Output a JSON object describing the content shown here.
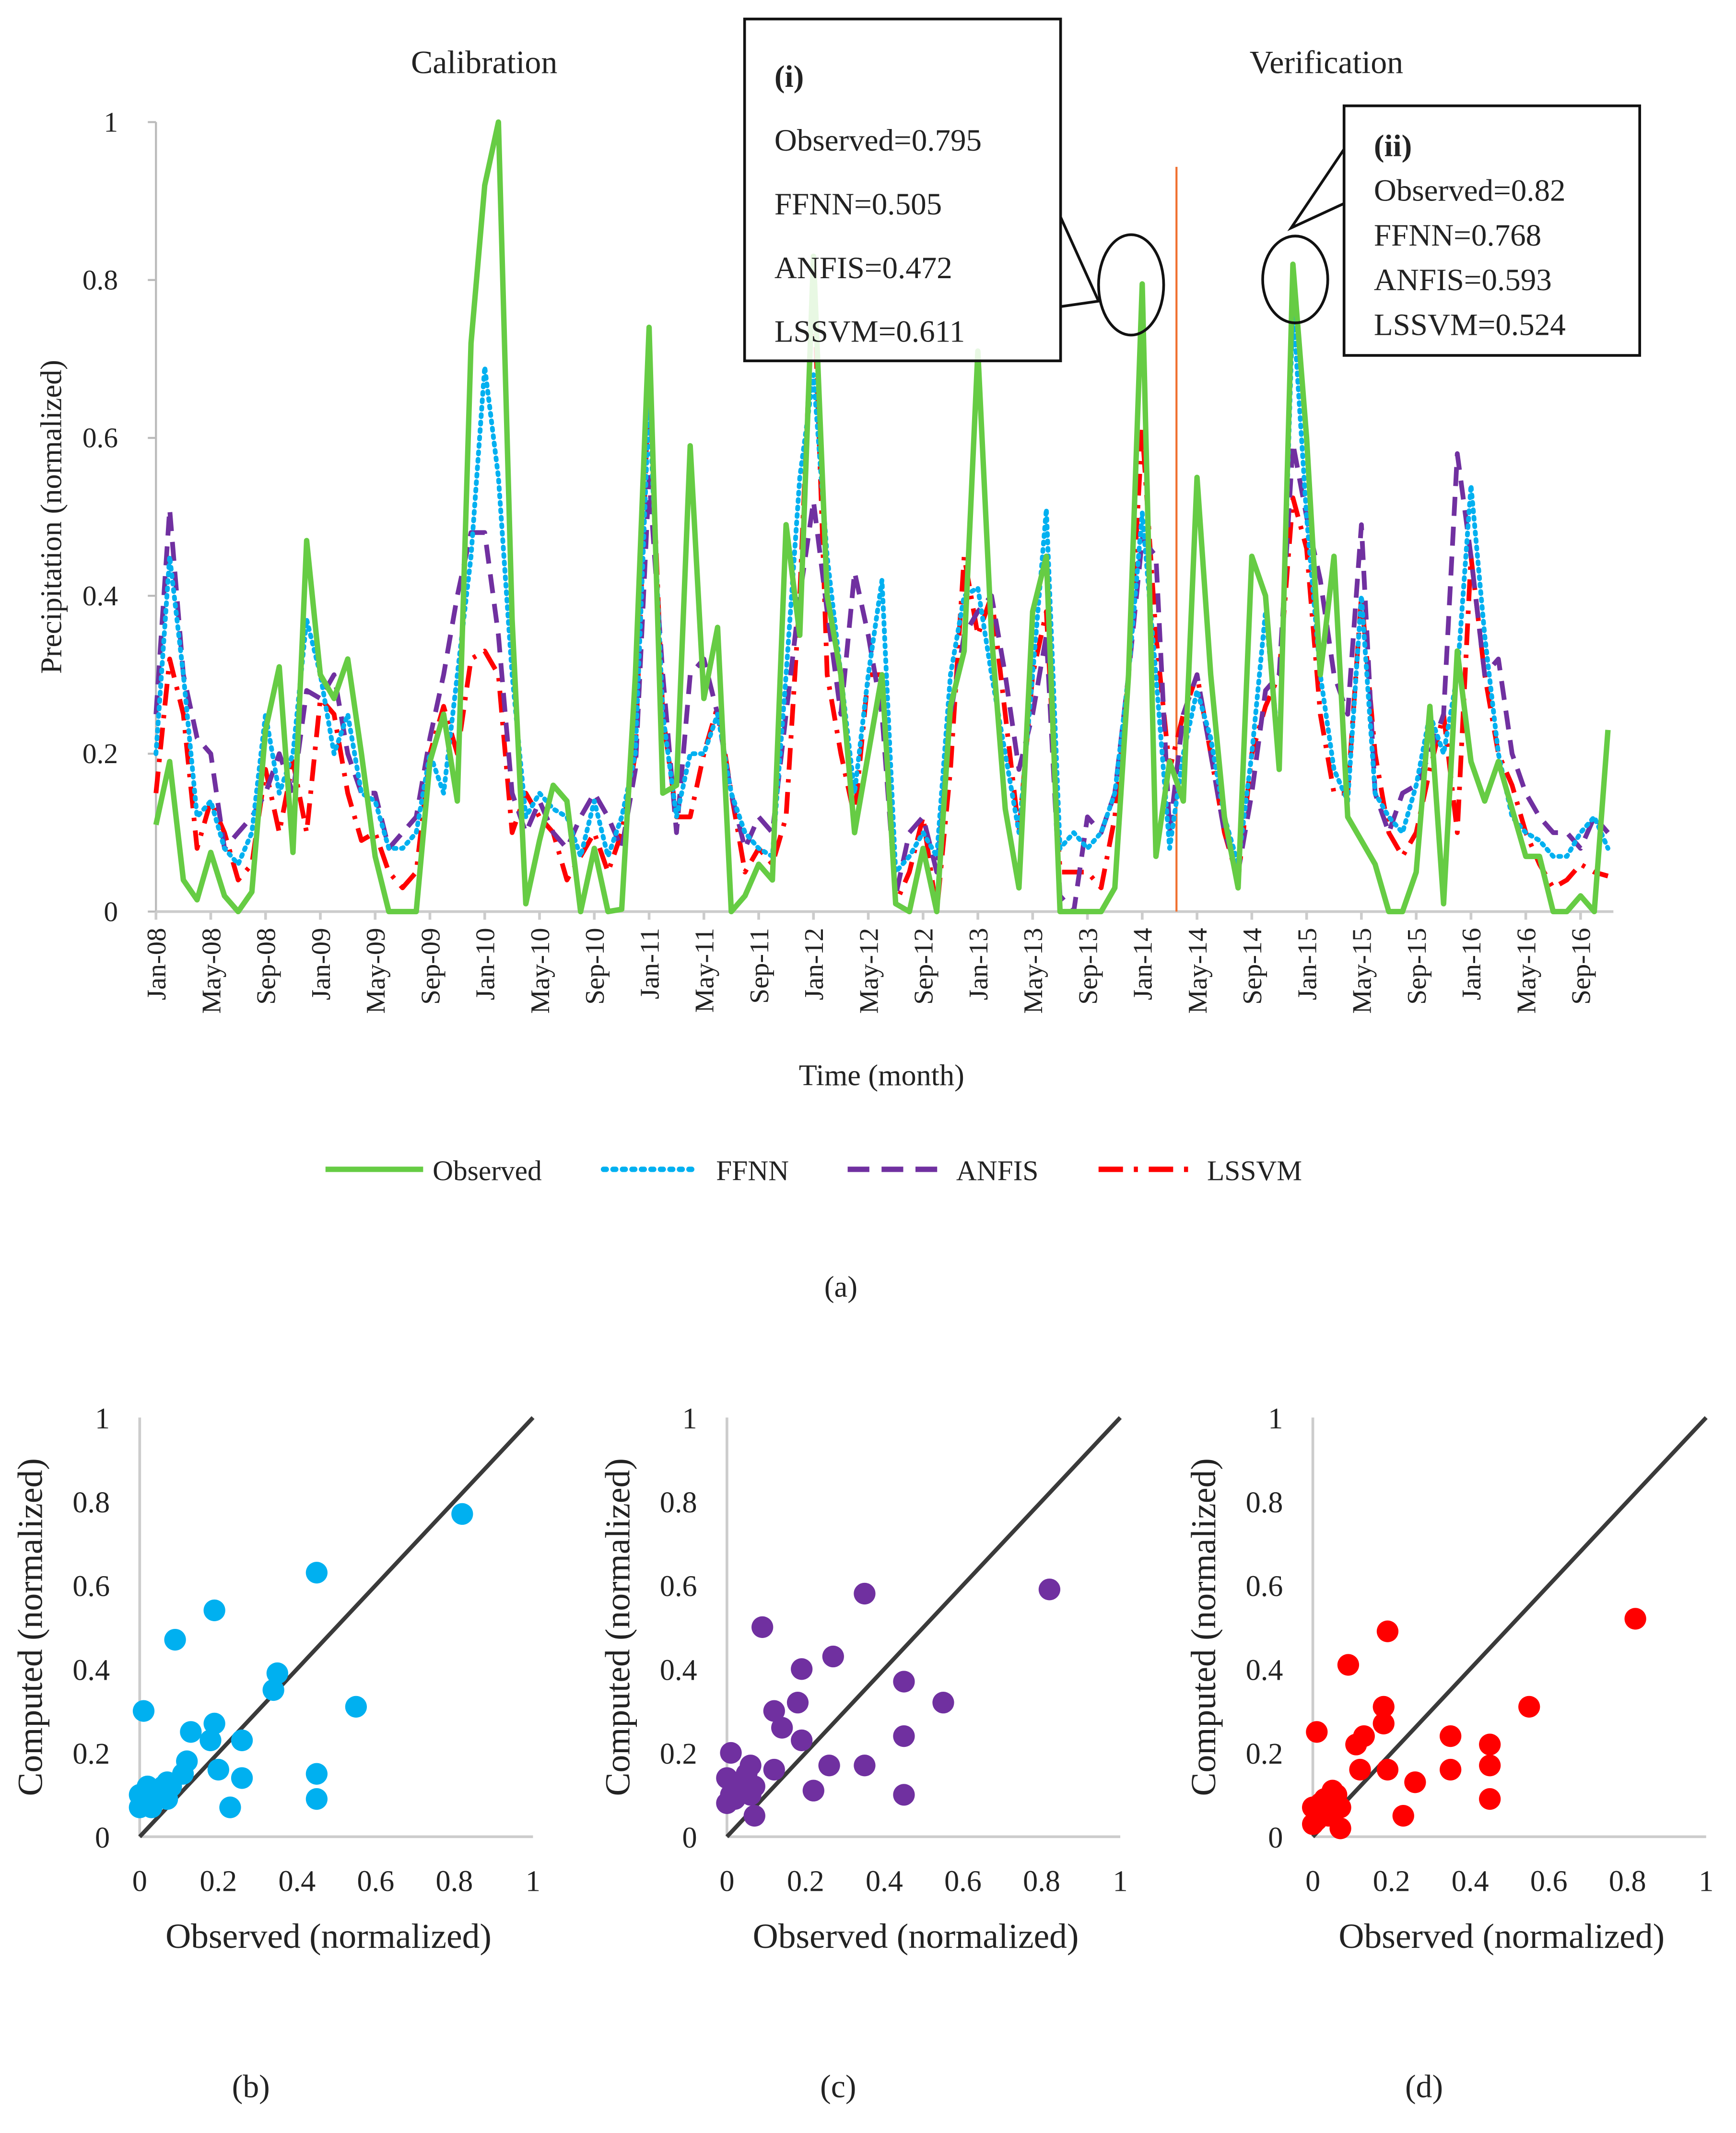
{
  "chart_data": [
    {
      "type": "line",
      "panel_label": "(a)",
      "title_left": "Calibration",
      "title_right": "Verification",
      "xlabel": "Time (month)",
      "ylabel": "Precipitation (normalized)",
      "ylim": [
        0,
        1
      ],
      "yticks": [
        "0",
        "0.2",
        "0.4",
        "0.6",
        "0.8",
        "1"
      ],
      "ytick_values": [
        0,
        0.2,
        0.4,
        0.6,
        0.8,
        1
      ],
      "start_month": "Jan-08",
      "xtick_labels": [
        "Jan-08",
        "May-08",
        "Sep-08",
        "Jan-09",
        "May-09",
        "Sep-09",
        "Jan-10",
        "May-10",
        "Sep-10",
        "Jan-11",
        "May-11",
        "Sep-11",
        "Jan-12",
        "May-12",
        "Sep-12",
        "Jan-13",
        "May-13",
        "Sep-13",
        "Jan-14",
        "May-14",
        "Sep-14",
        "Jan-15",
        "May-15",
        "Sep-15",
        "Jan-16",
        "May-16",
        "Sep-16"
      ],
      "xtick_every_months": 4,
      "split_month_index": 74.5,
      "colors": {
        "Observed": "#66cc44",
        "FFNN": "#00b0f0",
        "ANFIS": "#7030a0",
        "LSSVM": "#ff0000",
        "split": "#f07030"
      },
      "legend": [
        "Observed",
        "FFNN",
        "ANFIS",
        "LSSVM"
      ],
      "legend_position": "bottom",
      "series": [
        {
          "name": "Observed",
          "values": [
            0.11,
            0.19,
            0.04,
            0.015,
            0.075,
            0.02,
            0,
            0.025,
            0.23,
            0.31,
            0.075,
            0.47,
            0.3,
            0.27,
            0.32,
            0.2,
            0.07,
            0,
            0,
            0,
            0.19,
            0.25,
            0.14,
            0.72,
            0.92,
            1.0,
            0.37,
            0.01,
            0.09,
            0.16,
            0.14,
            0,
            0.08,
            0,
            0.003,
            0.3,
            0.74,
            0.15,
            0.16,
            0.59,
            0.27,
            0.36,
            0,
            0.02,
            0.06,
            0.04,
            0.49,
            0.35,
            0.83,
            0.4,
            0.3,
            0.1,
            0.2,
            0.3,
            0.01,
            0,
            0.08,
            0,
            0.26,
            0.33,
            0.71,
            0.35,
            0.13,
            0.03,
            0.38,
            0.45,
            0,
            0,
            0,
            0,
            0.03,
            0.3,
            0.795,
            0.07,
            0.19,
            0.14,
            0.55,
            0.3,
            0.12,
            0.03,
            0.45,
            0.4,
            0.18,
            0.82,
            0.6,
            0.3,
            0.45,
            0.12,
            0.09,
            0.06,
            0,
            0,
            0.05,
            0.26,
            0.01,
            0.33,
            0.19,
            0.14,
            0.19,
            0.13,
            0.07,
            0.07,
            0,
            0,
            0.02,
            0,
            0.23
          ]
        },
        {
          "name": "FFNN",
          "values": [
            0.2,
            0.45,
            0.3,
            0.12,
            0.14,
            0.08,
            0.06,
            0.1,
            0.25,
            0.15,
            0.2,
            0.37,
            0.3,
            0.2,
            0.25,
            0.15,
            0.14,
            0.08,
            0.08,
            0.1,
            0.2,
            0.15,
            0.3,
            0.45,
            0.69,
            0.55,
            0.3,
            0.12,
            0.15,
            0.13,
            0.12,
            0.07,
            0.14,
            0.07,
            0.12,
            0.2,
            0.65,
            0.25,
            0.12,
            0.2,
            0.2,
            0.25,
            0.15,
            0.1,
            0.08,
            0.07,
            0.3,
            0.55,
            0.68,
            0.45,
            0.3,
            0.15,
            0.3,
            0.42,
            0.05,
            0.07,
            0.1,
            0.07,
            0.3,
            0.4,
            0.41,
            0.3,
            0.2,
            0.1,
            0.3,
            0.51,
            0.08,
            0.1,
            0.08,
            0.1,
            0.15,
            0.3,
            0.505,
            0.3,
            0.08,
            0.2,
            0.28,
            0.22,
            0.12,
            0.06,
            0.2,
            0.38,
            0.2,
            0.768,
            0.5,
            0.3,
            0.18,
            0.14,
            0.4,
            0.15,
            0.12,
            0.1,
            0.16,
            0.25,
            0.2,
            0.3,
            0.54,
            0.35,
            0.2,
            0.12,
            0.1,
            0.09,
            0.07,
            0.07,
            0.1,
            0.12,
            0.08
          ]
        },
        {
          "name": "ANFIS",
          "values": [
            0.25,
            0.51,
            0.3,
            0.22,
            0.2,
            0.08,
            0.1,
            0.12,
            0.15,
            0.2,
            0.15,
            0.28,
            0.27,
            0.3,
            0.2,
            0.15,
            0.15,
            0.08,
            0.1,
            0.12,
            0.22,
            0.3,
            0.4,
            0.48,
            0.48,
            0.35,
            0.15,
            0.1,
            0.14,
            0.1,
            0.08,
            0.12,
            0.15,
            0.12,
            0.08,
            0.18,
            0.55,
            0.3,
            0.1,
            0.3,
            0.32,
            0.25,
            0.15,
            0.08,
            0.12,
            0.1,
            0.25,
            0.4,
            0.52,
            0.38,
            0.25,
            0.43,
            0.35,
            0.25,
            0.02,
            0.1,
            0.12,
            0.05,
            0.25,
            0.35,
            0.38,
            0.4,
            0.3,
            0.18,
            0.25,
            0.35,
            0.02,
            0,
            0.12,
            0.1,
            0.15,
            0.3,
            0.472,
            0.45,
            0.1,
            0.25,
            0.3,
            0.2,
            0.1,
            0.05,
            0.15,
            0.28,
            0.3,
            0.593,
            0.5,
            0.42,
            0.3,
            0.25,
            0.49,
            0.15,
            0.1,
            0.15,
            0.16,
            0.2,
            0.25,
            0.58,
            0.45,
            0.3,
            0.32,
            0.2,
            0.15,
            0.12,
            0.1,
            0.1,
            0.08,
            0.12,
            0.1
          ]
        },
        {
          "name": "LSSVM",
          "values": [
            0.15,
            0.32,
            0.25,
            0.08,
            0.14,
            0.1,
            0.04,
            0.06,
            0.18,
            0.1,
            0.19,
            0.1,
            0.27,
            0.25,
            0.15,
            0.09,
            0.1,
            0.05,
            0.03,
            0.05,
            0.2,
            0.26,
            0.2,
            0.32,
            0.33,
            0.3,
            0.1,
            0.15,
            0.12,
            0.1,
            0.04,
            0.07,
            0.1,
            0.05,
            0.1,
            0.2,
            0.68,
            0.25,
            0.12,
            0.12,
            0.2,
            0.26,
            0.15,
            0.05,
            0.08,
            0.06,
            0.12,
            0.4,
            0.81,
            0.3,
            0.2,
            0.12,
            0.3,
            0.3,
            0.01,
            0.05,
            0.12,
            0,
            0.18,
            0.45,
            0.35,
            0.4,
            0.25,
            0.1,
            0.3,
            0.38,
            0.05,
            0.05,
            0.05,
            0.03,
            0.12,
            0.3,
            0.611,
            0.35,
            0.18,
            0.25,
            0.3,
            0.2,
            0.1,
            0.04,
            0.2,
            0.26,
            0.3,
            0.524,
            0.46,
            0.25,
            0.15,
            0.15,
            0.4,
            0.2,
            0.1,
            0.07,
            0.1,
            0.18,
            0.25,
            0.1,
            0.45,
            0.3,
            0.2,
            0.16,
            0.1,
            0.06,
            0.03,
            0.04,
            0.06,
            0.05,
            0.045
          ]
        }
      ],
      "annotations": [
        {
          "label": "(i)",
          "lines": [
            "Observed=0.795",
            "FFNN=0.505",
            "ANFIS=0.472",
            "LSSVM=0.611"
          ],
          "month_index": 72
        },
        {
          "label": "(ii)",
          "lines": [
            "Observed=0.82",
            "FFNN=0.768",
            "ANFIS=0.593",
            "LSSVM=0.524"
          ],
          "month_index": 83
        }
      ]
    },
    {
      "type": "scatter",
      "panel_label": "(b)",
      "model": "FFNN",
      "color": "#00b0f0",
      "xlabel": "Observed (normalized)",
      "ylabel": "Computed (normalized)",
      "xlim": [
        0,
        1
      ],
      "ylim": [
        0,
        1
      ],
      "xticks": [
        "0",
        "0.2",
        "0.4",
        "0.6",
        "0.8",
        "1"
      ],
      "yticks": [
        "0",
        "0.2",
        "0.4",
        "0.6",
        "0.8",
        "1"
      ],
      "points": [
        [
          0.82,
          0.77
        ],
        [
          0.45,
          0.63
        ],
        [
          0.19,
          0.54
        ],
        [
          0.09,
          0.47
        ],
        [
          0.01,
          0.3
        ],
        [
          0.35,
          0.39
        ],
        [
          0.34,
          0.35
        ],
        [
          0.55,
          0.31
        ],
        [
          0.19,
          0.27
        ],
        [
          0.13,
          0.25
        ],
        [
          0.18,
          0.23
        ],
        [
          0.26,
          0.23
        ],
        [
          0.12,
          0.18
        ],
        [
          0.2,
          0.16
        ],
        [
          0.26,
          0.14
        ],
        [
          0.45,
          0.15
        ],
        [
          0.45,
          0.09
        ],
        [
          0.23,
          0.07
        ],
        [
          0.11,
          0.15
        ],
        [
          0.0,
          0.1
        ],
        [
          0.01,
          0.08
        ],
        [
          0.02,
          0.12
        ],
        [
          0.03,
          0.07
        ],
        [
          0.05,
          0.1
        ],
        [
          0.06,
          0.12
        ],
        [
          0.07,
          0.13
        ],
        [
          0.04,
          0.09
        ],
        [
          0.0,
          0.07
        ],
        [
          0.08,
          0.12
        ],
        [
          0.07,
          0.09
        ]
      ]
    },
    {
      "type": "scatter",
      "panel_label": "(c)",
      "model": "ANFIS",
      "color": "#7030a0",
      "xlabel": "Observed (normalized)",
      "ylabel": "Computed (normalized)",
      "xlim": [
        0,
        1
      ],
      "ylim": [
        0,
        1
      ],
      "xticks": [
        "0",
        "0.2",
        "0.4",
        "0.6",
        "0.8",
        "1"
      ],
      "yticks": [
        "0",
        "0.2",
        "0.4",
        "0.6",
        "0.8",
        "1"
      ],
      "points": [
        [
          0.82,
          0.59
        ],
        [
          0.35,
          0.58
        ],
        [
          0.09,
          0.5
        ],
        [
          0.27,
          0.43
        ],
        [
          0.19,
          0.4
        ],
        [
          0.45,
          0.37
        ],
        [
          0.18,
          0.32
        ],
        [
          0.55,
          0.32
        ],
        [
          0.12,
          0.3
        ],
        [
          0.14,
          0.26
        ],
        [
          0.19,
          0.23
        ],
        [
          0.45,
          0.24
        ],
        [
          0.26,
          0.17
        ],
        [
          0.12,
          0.16
        ],
        [
          0.35,
          0.17
        ],
        [
          0.22,
          0.11
        ],
        [
          0.45,
          0.1
        ],
        [
          0.07,
          0.05
        ],
        [
          0.01,
          0.2
        ],
        [
          0.0,
          0.14
        ],
        [
          0.01,
          0.1
        ],
        [
          0.0,
          0.08
        ],
        [
          0.03,
          0.12
        ],
        [
          0.05,
          0.15
        ],
        [
          0.06,
          0.17
        ],
        [
          0.07,
          0.12
        ],
        [
          0.04,
          0.13
        ],
        [
          0.06,
          0.1
        ],
        [
          0.02,
          0.09
        ]
      ]
    },
    {
      "type": "scatter",
      "panel_label": "(d)",
      "model": "LSSVM",
      "color": "#ff0000",
      "xlabel": "Observed (normalized)",
      "ylabel": "Computed (normalized)",
      "xlim": [
        0,
        1
      ],
      "ylim": [
        0,
        1
      ],
      "xticks": [
        "0",
        "0.2",
        "0.4",
        "0.6",
        "0.8",
        "1"
      ],
      "yticks": [
        "0",
        "0.2",
        "0.4",
        "0.6",
        "0.8",
        "1"
      ],
      "points": [
        [
          0.82,
          0.52
        ],
        [
          0.19,
          0.49
        ],
        [
          0.09,
          0.41
        ],
        [
          0.55,
          0.31
        ],
        [
          0.18,
          0.31
        ],
        [
          0.18,
          0.27
        ],
        [
          0.13,
          0.24
        ],
        [
          0.11,
          0.22
        ],
        [
          0.35,
          0.24
        ],
        [
          0.45,
          0.22
        ],
        [
          0.01,
          0.25
        ],
        [
          0.19,
          0.16
        ],
        [
          0.12,
          0.16
        ],
        [
          0.35,
          0.16
        ],
        [
          0.45,
          0.17
        ],
        [
          0.26,
          0.13
        ],
        [
          0.45,
          0.09
        ],
        [
          0.23,
          0.05
        ],
        [
          0.07,
          0.02
        ],
        [
          0.0,
          0.07
        ],
        [
          0.01,
          0.04
        ],
        [
          0.02,
          0.06
        ],
        [
          0.03,
          0.09
        ],
        [
          0.05,
          0.11
        ],
        [
          0.06,
          0.1
        ],
        [
          0.07,
          0.07
        ],
        [
          0.04,
          0.05
        ],
        [
          0.0,
          0.03
        ],
        [
          0.02,
          0.08
        ]
      ]
    }
  ]
}
